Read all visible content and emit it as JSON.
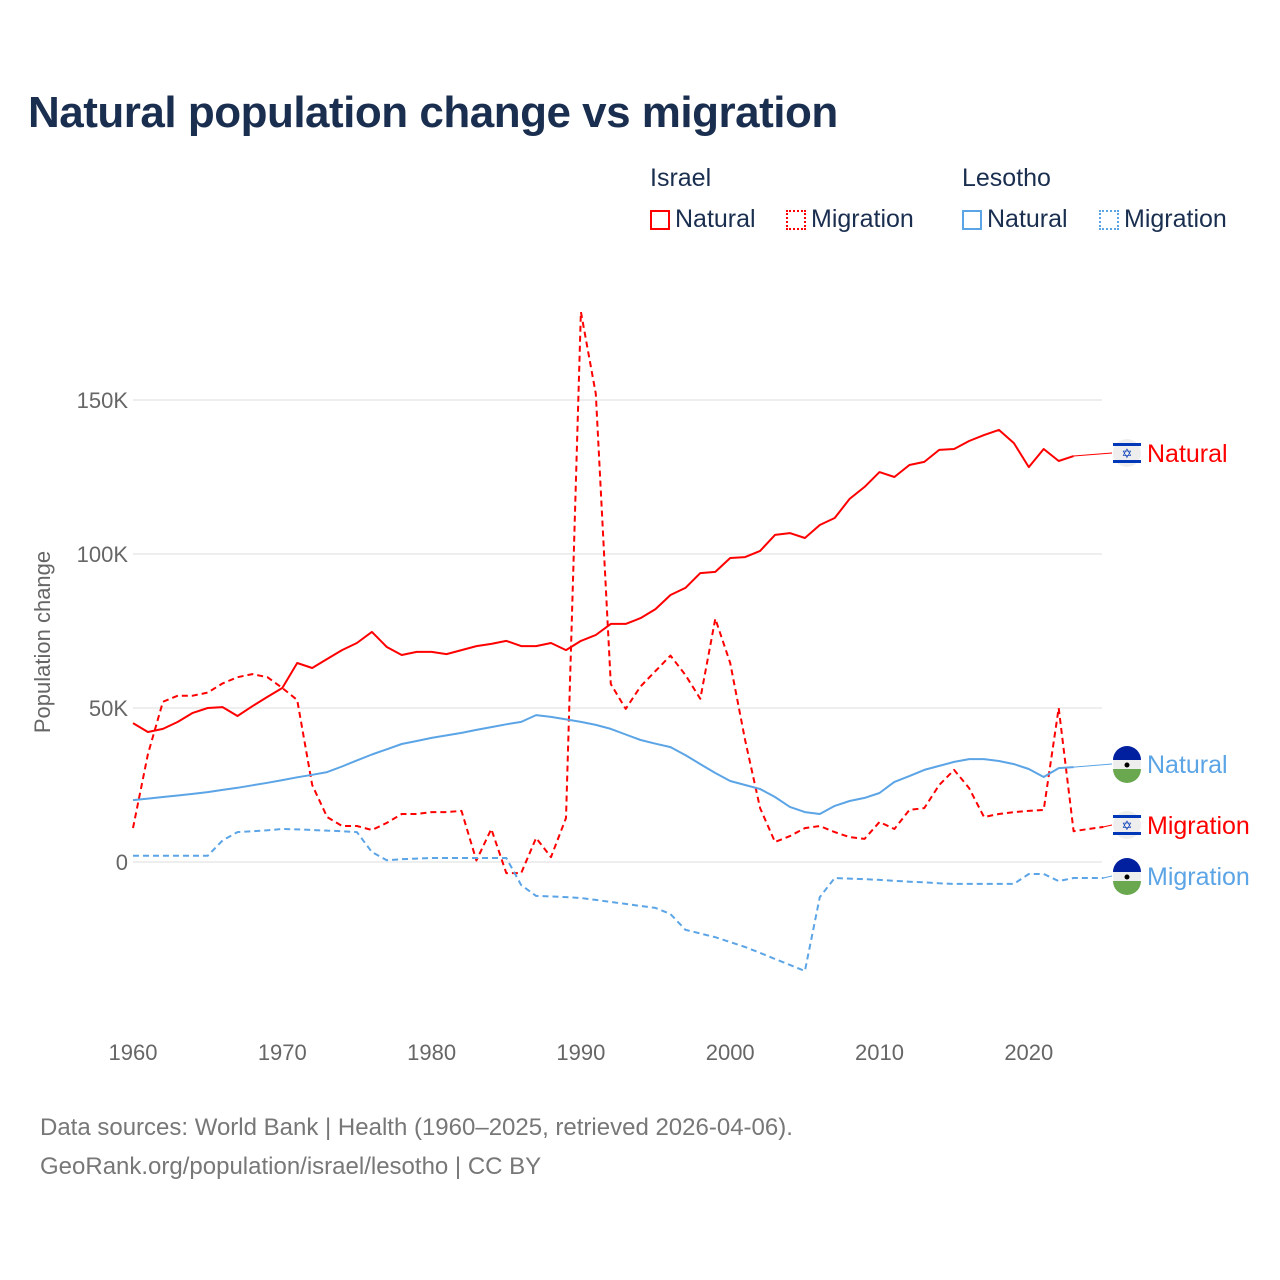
{
  "title": "Natural population change vs migration",
  "legend": {
    "groups": [
      {
        "name": "Israel",
        "items": [
          "Natural",
          "Migration"
        ]
      },
      {
        "name": "Lesotho",
        "items": [
          "Natural",
          "Migration"
        ]
      }
    ]
  },
  "footer": {
    "line1": "Data sources: World Bank | Health (1960–2025, retrieved 2026-04-06).",
    "line2": "GeoRank.org/population/israel/lesotho | CC BY"
  },
  "colors": {
    "israel": "#ff0000",
    "lesotho": "#5ba4e6",
    "title": "#1a2e4f"
  },
  "chart_data": {
    "type": "line",
    "title": "Natural population change vs migration",
    "xlabel": "",
    "ylabel": "Population change",
    "xlim": [
      1960,
      2025
    ],
    "ylim": [
      -45000,
      185000
    ],
    "xticks": [
      {
        "v": 1960,
        "label": "1960"
      },
      {
        "v": 1970,
        "label": "1970"
      },
      {
        "v": 1980,
        "label": "1980"
      },
      {
        "v": 1990,
        "label": "1990"
      },
      {
        "v": 2000,
        "label": "2000"
      },
      {
        "v": 2010,
        "label": "2010"
      },
      {
        "v": 2020,
        "label": "2020"
      }
    ],
    "yticks": [
      {
        "v": 0,
        "label": "0"
      },
      {
        "v": 50000,
        "label": "50K"
      },
      {
        "v": 100000,
        "label": "100K"
      },
      {
        "v": 150000,
        "label": "150K"
      }
    ],
    "grid": true,
    "legend": "top-right",
    "x_start": 1960,
    "series": [
      {
        "name": "Israel Natural",
        "label": "Natural",
        "country": "israel",
        "dash": false,
        "values": [
          45100,
          42200,
          43200,
          45500,
          48400,
          50000,
          50300,
          47400,
          50600,
          53600,
          56500,
          64600,
          63000,
          65900,
          68800,
          71100,
          74700,
          69800,
          67200,
          68200,
          68200,
          67500,
          68800,
          70100,
          70800,
          71800,
          70100,
          70100,
          71100,
          68800,
          71800,
          73700,
          77300,
          77300,
          79200,
          82100,
          86700,
          89000,
          93800,
          94200,
          98700,
          99000,
          101000,
          106200,
          106800,
          105200,
          109400,
          111700,
          117900,
          121800,
          126600,
          125000,
          128900,
          129900,
          133800,
          134100,
          136700,
          138600,
          140300,
          136000,
          128200,
          134100,
          130200,
          131800
        ]
      },
      {
        "name": "Israel Migration",
        "label": "Migration",
        "country": "israel",
        "dash": true,
        "values": [
          11000,
          35000,
          52000,
          54000,
          54000,
          55000,
          58000,
          60000,
          61000,
          60000,
          56500,
          52600,
          25000,
          14600,
          11700,
          11700,
          10400,
          12700,
          15600,
          15600,
          16200,
          16200,
          16600,
          500,
          10700,
          -3600,
          -3600,
          7800,
          1600,
          14300,
          178600,
          152000,
          57800,
          49700,
          57000,
          62000,
          67000,
          60700,
          53000,
          79000,
          64600,
          39600,
          17500,
          6500,
          8400,
          11000,
          11700,
          9700,
          8100,
          7500,
          13000,
          10700,
          16900,
          17500,
          25000,
          29900,
          24000,
          14600,
          15600,
          16200,
          16600,
          16900,
          50000,
          10000,
          10700,
          11400
        ]
      },
      {
        "name": "Lesotho Natural",
        "label": "Natural",
        "country": "lesotho",
        "dash": false,
        "values": [
          20100,
          20600,
          21100,
          21600,
          22100,
          22700,
          23400,
          24100,
          24900,
          25700,
          26600,
          27500,
          28300,
          29200,
          31000,
          33000,
          34900,
          36600,
          38300,
          39300,
          40300,
          41100,
          41900,
          42900,
          43800,
          44700,
          45500,
          47700,
          47100,
          46300,
          45500,
          44500,
          43200,
          41400,
          39600,
          38400,
          37300,
          34700,
          31800,
          28900,
          26300,
          25000,
          23700,
          21100,
          17900,
          16200,
          15600,
          18200,
          19800,
          20800,
          22400,
          26000,
          27900,
          29900,
          31200,
          32500,
          33400,
          33400,
          32800,
          31800,
          30200,
          27600,
          30500,
          30800
        ]
      },
      {
        "name": "Lesotho Migration",
        "label": "Migration",
        "country": "lesotho",
        "dash": true,
        "values": [
          2000,
          2000,
          2000,
          2000,
          2000,
          2000,
          7000,
          9700,
          10000,
          10300,
          10700,
          10600,
          10400,
          10200,
          10000,
          9700,
          3200,
          600,
          900,
          1100,
          1300,
          1300,
          1300,
          1300,
          1300,
          1300,
          -7500,
          -11000,
          -11200,
          -11400,
          -11700,
          -12300,
          -13000,
          -13600,
          -14300,
          -14900,
          -16900,
          -22000,
          -23200,
          -24400,
          -26000,
          -27600,
          -29500,
          -31500,
          -33400,
          -35400,
          -11400,
          -5200,
          -5400,
          -5600,
          -5800,
          -6100,
          -6400,
          -6600,
          -6900,
          -7100,
          -7100,
          -7100,
          -7100,
          -7100,
          -3900,
          -3900,
          -6200,
          -5200,
          -5200,
          -5200
        ]
      }
    ]
  }
}
